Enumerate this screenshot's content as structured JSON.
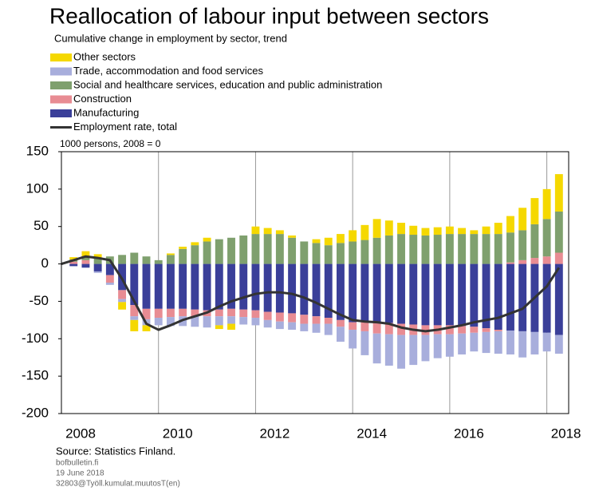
{
  "chart_data": {
    "type": "bar",
    "title": "Reallocation of labour input between sectors",
    "subtitle": "Cumulative change in employment by sector, trend",
    "y_label": "1000 persons, 2008 = 0",
    "x": [
      2008,
      2008.25,
      2008.5,
      2008.75,
      2009,
      2009.25,
      2009.5,
      2009.75,
      2010,
      2010.25,
      2010.5,
      2010.75,
      2011,
      2011.25,
      2011.5,
      2011.75,
      2012,
      2012.25,
      2012.5,
      2012.75,
      2013,
      2013.25,
      2013.5,
      2013.75,
      2014,
      2014.25,
      2014.5,
      2014.75,
      2015,
      2015.25,
      2015.5,
      2015.75,
      2016,
      2016.25,
      2016.5,
      2016.75,
      2017,
      2017.25,
      2017.5,
      2017.75,
      2018,
      2018.25
    ],
    "series": [
      {
        "name": "Other sectors",
        "color": "#f5d800",
        "values": [
          0,
          3,
          7,
          5,
          0,
          -10,
          -15,
          -8,
          0,
          2,
          3,
          4,
          5,
          -5,
          -8,
          0,
          10,
          8,
          5,
          3,
          0,
          5,
          10,
          12,
          15,
          20,
          25,
          20,
          15,
          12,
          10,
          10,
          10,
          8,
          5,
          10,
          15,
          22,
          30,
          35,
          40,
          50
        ]
      },
      {
        "name": "Trade, accommodation and food services",
        "color": "#a8aedc",
        "values": [
          0,
          0,
          0,
          -2,
          -3,
          -4,
          -5,
          -8,
          -10,
          -12,
          -13,
          -14,
          -15,
          -12,
          -10,
          -10,
          -10,
          -10,
          -10,
          -10,
          -10,
          -12,
          -15,
          -20,
          -25,
          -32,
          -40,
          -42,
          -45,
          -40,
          -35,
          -32,
          -30,
          -28,
          -25,
          -28,
          -30,
          -32,
          -35,
          -30,
          -25,
          -25
        ]
      },
      {
        "name": "Social and healthcare services, education and public administration",
        "color": "#7fa06e",
        "values": [
          0,
          3,
          5,
          8,
          10,
          12,
          15,
          10,
          5,
          12,
          20,
          25,
          30,
          33,
          35,
          38,
          40,
          40,
          40,
          35,
          30,
          28,
          25,
          28,
          30,
          32,
          35,
          38,
          40,
          39,
          38,
          39,
          40,
          40,
          40,
          40,
          40,
          40,
          40,
          45,
          50,
          55
        ]
      },
      {
        "name": "Construction",
        "color": "#e88c93",
        "values": [
          0,
          3,
          5,
          0,
          -10,
          -12,
          -15,
          -14,
          -12,
          -11,
          -10,
          -9,
          -8,
          -9,
          -10,
          -10,
          -10,
          -11,
          -12,
          -12,
          -12,
          -10,
          -8,
          -9,
          -10,
          -12,
          -15,
          -15,
          -15,
          -14,
          -13,
          -12,
          -12,
          -10,
          -8,
          -5,
          -2,
          2,
          5,
          8,
          10,
          15
        ]
      },
      {
        "name": "Manufacturing",
        "color": "#3a3f99",
        "values": [
          0,
          -3,
          -5,
          -10,
          -15,
          -35,
          -55,
          -60,
          -60,
          -60,
          -60,
          -61,
          -62,
          -61,
          -60,
          -61,
          -62,
          -64,
          -65,
          -66,
          -68,
          -70,
          -72,
          -75,
          -78,
          -78,
          -78,
          -79,
          -80,
          -81,
          -82,
          -82,
          -82,
          -83,
          -84,
          -86,
          -88,
          -89,
          -90,
          -91,
          -92,
          -95
        ]
      },
      {
        "name": "Employment rate, total",
        "color": "#333333",
        "type": "line",
        "values": [
          0,
          5,
          10,
          8,
          5,
          -20,
          -50,
          -80,
          -88,
          -82,
          -75,
          -70,
          -65,
          -57,
          -50,
          -45,
          -40,
          -38,
          -38,
          -40,
          -45,
          -52,
          -60,
          -68,
          -75,
          -77,
          -78,
          -80,
          -85,
          -88,
          -90,
          -88,
          -85,
          -82,
          -78,
          -75,
          -72,
          -66,
          -60,
          -45,
          -30,
          -5
        ]
      }
    ],
    "xlim": [
      2008,
      2018.45
    ],
    "xticks": [
      2008,
      2010,
      2012,
      2014,
      2016,
      2018
    ],
    "ylim": [
      -200,
      150
    ],
    "yticks": [
      -200,
      -150,
      -100,
      -50,
      0,
      50,
      100,
      150
    ],
    "grid": "x",
    "source": "Source: Statistics Finland.",
    "footer": [
      "bofbulletin.fi",
      "19 June 2018",
      "32803@Työll.kumulat.muutosT(en)"
    ]
  }
}
